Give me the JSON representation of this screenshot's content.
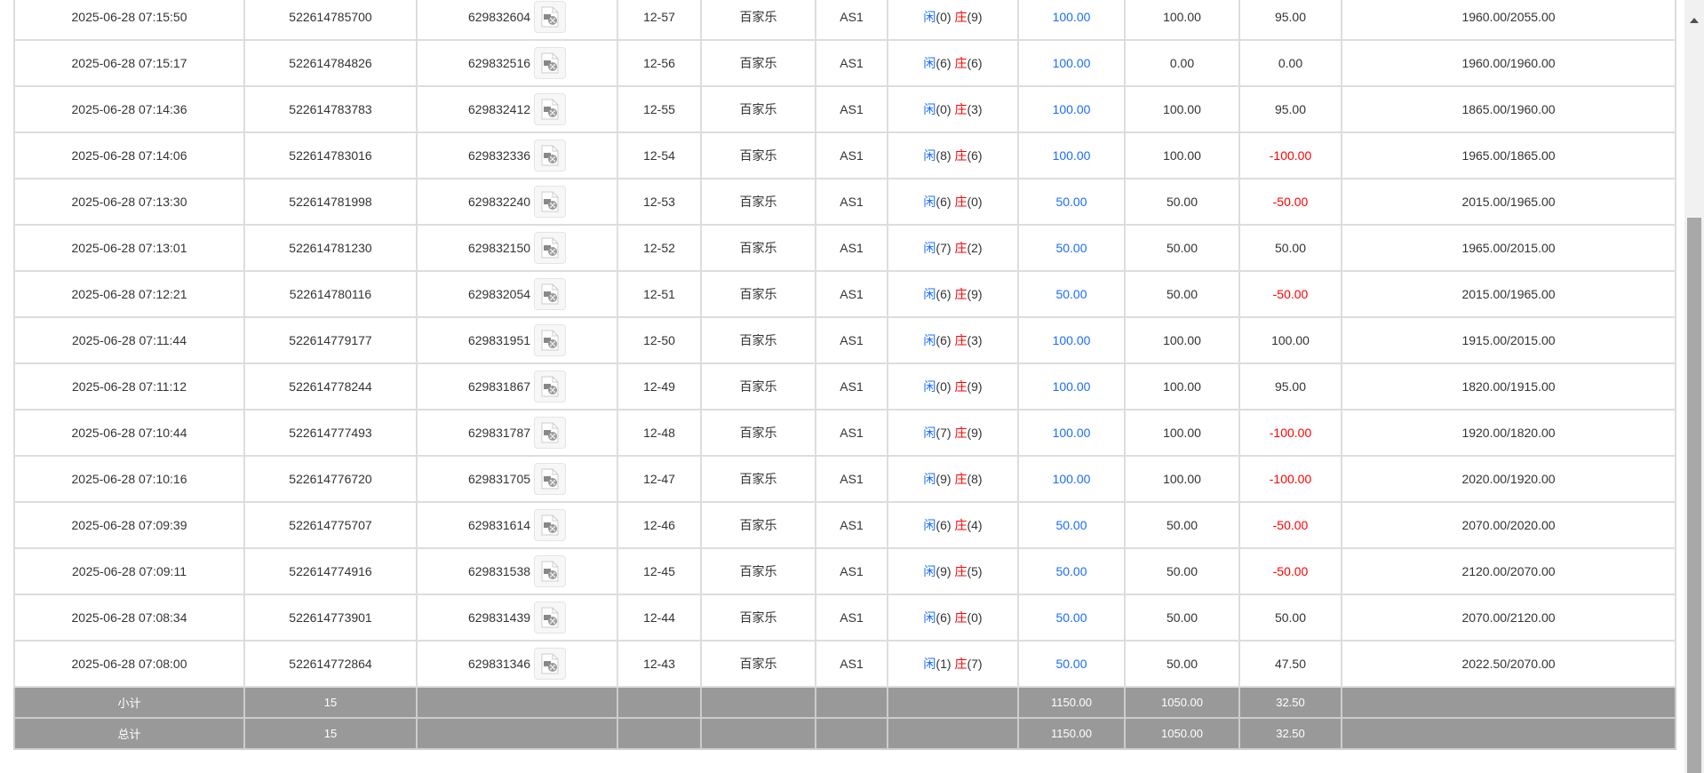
{
  "game_name": "百家乐",
  "table_name": "AS1",
  "xian_label": "闲",
  "zhuang_label": "庄",
  "rows": [
    {
      "time": "2025-06-28 07:15:50",
      "order": "522614785700",
      "round": "629832604",
      "shoe": "12-57",
      "xian": "(0)",
      "zhuang": "(9)",
      "bet": "100.00",
      "valid": "100.00",
      "win": "95.00",
      "balance": "1960.00/2055.00"
    },
    {
      "time": "2025-06-28 07:15:17",
      "order": "522614784826",
      "round": "629832516",
      "shoe": "12-56",
      "xian": "(6)",
      "zhuang": "(6)",
      "bet": "100.00",
      "valid": "0.00",
      "win": "0.00",
      "balance": "1960.00/1960.00"
    },
    {
      "time": "2025-06-28 07:14:36",
      "order": "522614783783",
      "round": "629832412",
      "shoe": "12-55",
      "xian": "(0)",
      "zhuang": "(3)",
      "bet": "100.00",
      "valid": "100.00",
      "win": "95.00",
      "balance": "1865.00/1960.00"
    },
    {
      "time": "2025-06-28 07:14:06",
      "order": "522614783016",
      "round": "629832336",
      "shoe": "12-54",
      "xian": "(8)",
      "zhuang": "(6)",
      "bet": "100.00",
      "valid": "100.00",
      "win": "-100.00",
      "balance": "1965.00/1865.00"
    },
    {
      "time": "2025-06-28 07:13:30",
      "order": "522614781998",
      "round": "629832240",
      "shoe": "12-53",
      "xian": "(6)",
      "zhuang": "(0)",
      "bet": "50.00",
      "valid": "50.00",
      "win": "-50.00",
      "balance": "2015.00/1965.00"
    },
    {
      "time": "2025-06-28 07:13:01",
      "order": "522614781230",
      "round": "629832150",
      "shoe": "12-52",
      "xian": "(7)",
      "zhuang": "(2)",
      "bet": "50.00",
      "valid": "50.00",
      "win": "50.00",
      "balance": "1965.00/2015.00"
    },
    {
      "time": "2025-06-28 07:12:21",
      "order": "522614780116",
      "round": "629832054",
      "shoe": "12-51",
      "xian": "(6)",
      "zhuang": "(9)",
      "bet": "50.00",
      "valid": "50.00",
      "win": "-50.00",
      "balance": "2015.00/1965.00"
    },
    {
      "time": "2025-06-28 07:11:44",
      "order": "522614779177",
      "round": "629831951",
      "shoe": "12-50",
      "xian": "(6)",
      "zhuang": "(3)",
      "bet": "100.00",
      "valid": "100.00",
      "win": "100.00",
      "balance": "1915.00/2015.00"
    },
    {
      "time": "2025-06-28 07:11:12",
      "order": "522614778244",
      "round": "629831867",
      "shoe": "12-49",
      "xian": "(0)",
      "zhuang": "(9)",
      "bet": "100.00",
      "valid": "100.00",
      "win": "95.00",
      "balance": "1820.00/1915.00"
    },
    {
      "time": "2025-06-28 07:10:44",
      "order": "522614777493",
      "round": "629831787",
      "shoe": "12-48",
      "xian": "(7)",
      "zhuang": "(9)",
      "bet": "100.00",
      "valid": "100.00",
      "win": "-100.00",
      "balance": "1920.00/1820.00"
    },
    {
      "time": "2025-06-28 07:10:16",
      "order": "522614776720",
      "round": "629831705",
      "shoe": "12-47",
      "xian": "(9)",
      "zhuang": "(8)",
      "bet": "100.00",
      "valid": "100.00",
      "win": "-100.00",
      "balance": "2020.00/1920.00"
    },
    {
      "time": "2025-06-28 07:09:39",
      "order": "522614775707",
      "round": "629831614",
      "shoe": "12-46",
      "xian": "(6)",
      "zhuang": "(4)",
      "bet": "50.00",
      "valid": "50.00",
      "win": "-50.00",
      "balance": "2070.00/2020.00"
    },
    {
      "time": "2025-06-28 07:09:11",
      "order": "522614774916",
      "round": "629831538",
      "shoe": "12-45",
      "xian": "(9)",
      "zhuang": "(5)",
      "bet": "50.00",
      "valid": "50.00",
      "win": "-50.00",
      "balance": "2120.00/2070.00"
    },
    {
      "time": "2025-06-28 07:08:34",
      "order": "522614773901",
      "round": "629831439",
      "shoe": "12-44",
      "xian": "(6)",
      "zhuang": "(0)",
      "bet": "50.00",
      "valid": "50.00",
      "win": "50.00",
      "balance": "2070.00/2120.00"
    },
    {
      "time": "2025-06-28 07:08:00",
      "order": "522614772864",
      "round": "629831346",
      "shoe": "12-43",
      "xian": "(1)",
      "zhuang": "(7)",
      "bet": "50.00",
      "valid": "50.00",
      "win": "47.50",
      "balance": "2022.50/2070.00"
    }
  ],
  "subtotal": {
    "label": "小计",
    "count": "15",
    "bet": "1150.00",
    "valid": "1050.00",
    "win": "32.50"
  },
  "total": {
    "label": "总计",
    "count": "15",
    "bet": "1150.00",
    "valid": "1050.00",
    "win": "32.50"
  },
  "colors": {
    "bet": "#1a6cff",
    "loss": "#ff0000",
    "summary_bg": "#999999"
  }
}
